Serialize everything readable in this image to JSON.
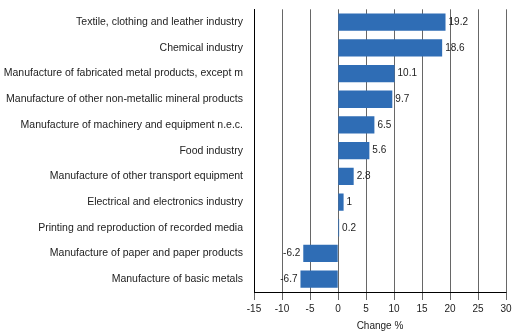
{
  "chart_data": {
    "type": "bar",
    "orientation": "horizontal",
    "categories": [
      "Textile, clothing and leather industry",
      "Chemical industry",
      "Manufacture of fabricated metal products, except m",
      "Manufacture of other non-metallic mineral products",
      "Manufacture of machinery and equipment n.e.c.",
      "Food industry",
      "Manufacture of other transport equipment",
      "Electrical and electronics industry",
      "Printing and reproduction of recorded media",
      "Manufacture of paper and paper products",
      "Manufacture of basic metals"
    ],
    "values": [
      19.2,
      18.6,
      10.1,
      9.7,
      6.5,
      5.6,
      2.8,
      1,
      0.2,
      -6.2,
      -6.7
    ],
    "color": "#2f6db5",
    "xlabel": "Change %",
    "xlim": [
      -15,
      30
    ],
    "xticks": [
      -15,
      -10,
      -5,
      0,
      5,
      10,
      15,
      20,
      25,
      30
    ],
    "grid": true,
    "data_labels": true
  }
}
